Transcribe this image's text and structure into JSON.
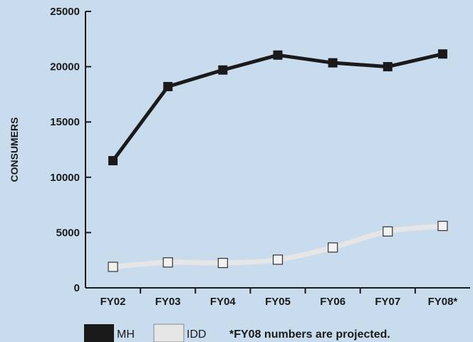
{
  "chart_data": {
    "type": "line",
    "categories": [
      "FY02",
      "FY03",
      "FY04",
      "FY05",
      "FY06",
      "FY07",
      "FY08*"
    ],
    "series": [
      {
        "name": "MH",
        "values": [
          11500,
          18200,
          19700,
          21050,
          20350,
          20000,
          21150
        ],
        "color": "#1a1a1a",
        "marker": "filled-square"
      },
      {
        "name": "IDD",
        "values": [
          1900,
          2300,
          2250,
          2550,
          3650,
          5100,
          5600
        ],
        "color": "#e6e6e6",
        "marker": "hollow-square"
      }
    ],
    "title": "",
    "xlabel": "",
    "ylabel": "CONSUMERS",
    "ylim": [
      0,
      25000
    ],
    "yticks": [
      0,
      5000,
      10000,
      15000,
      20000,
      25000
    ],
    "grid": false,
    "legend_position": "bottom-left",
    "note": "*FY08 numbers are projected.",
    "background": "#c9dcee"
  }
}
